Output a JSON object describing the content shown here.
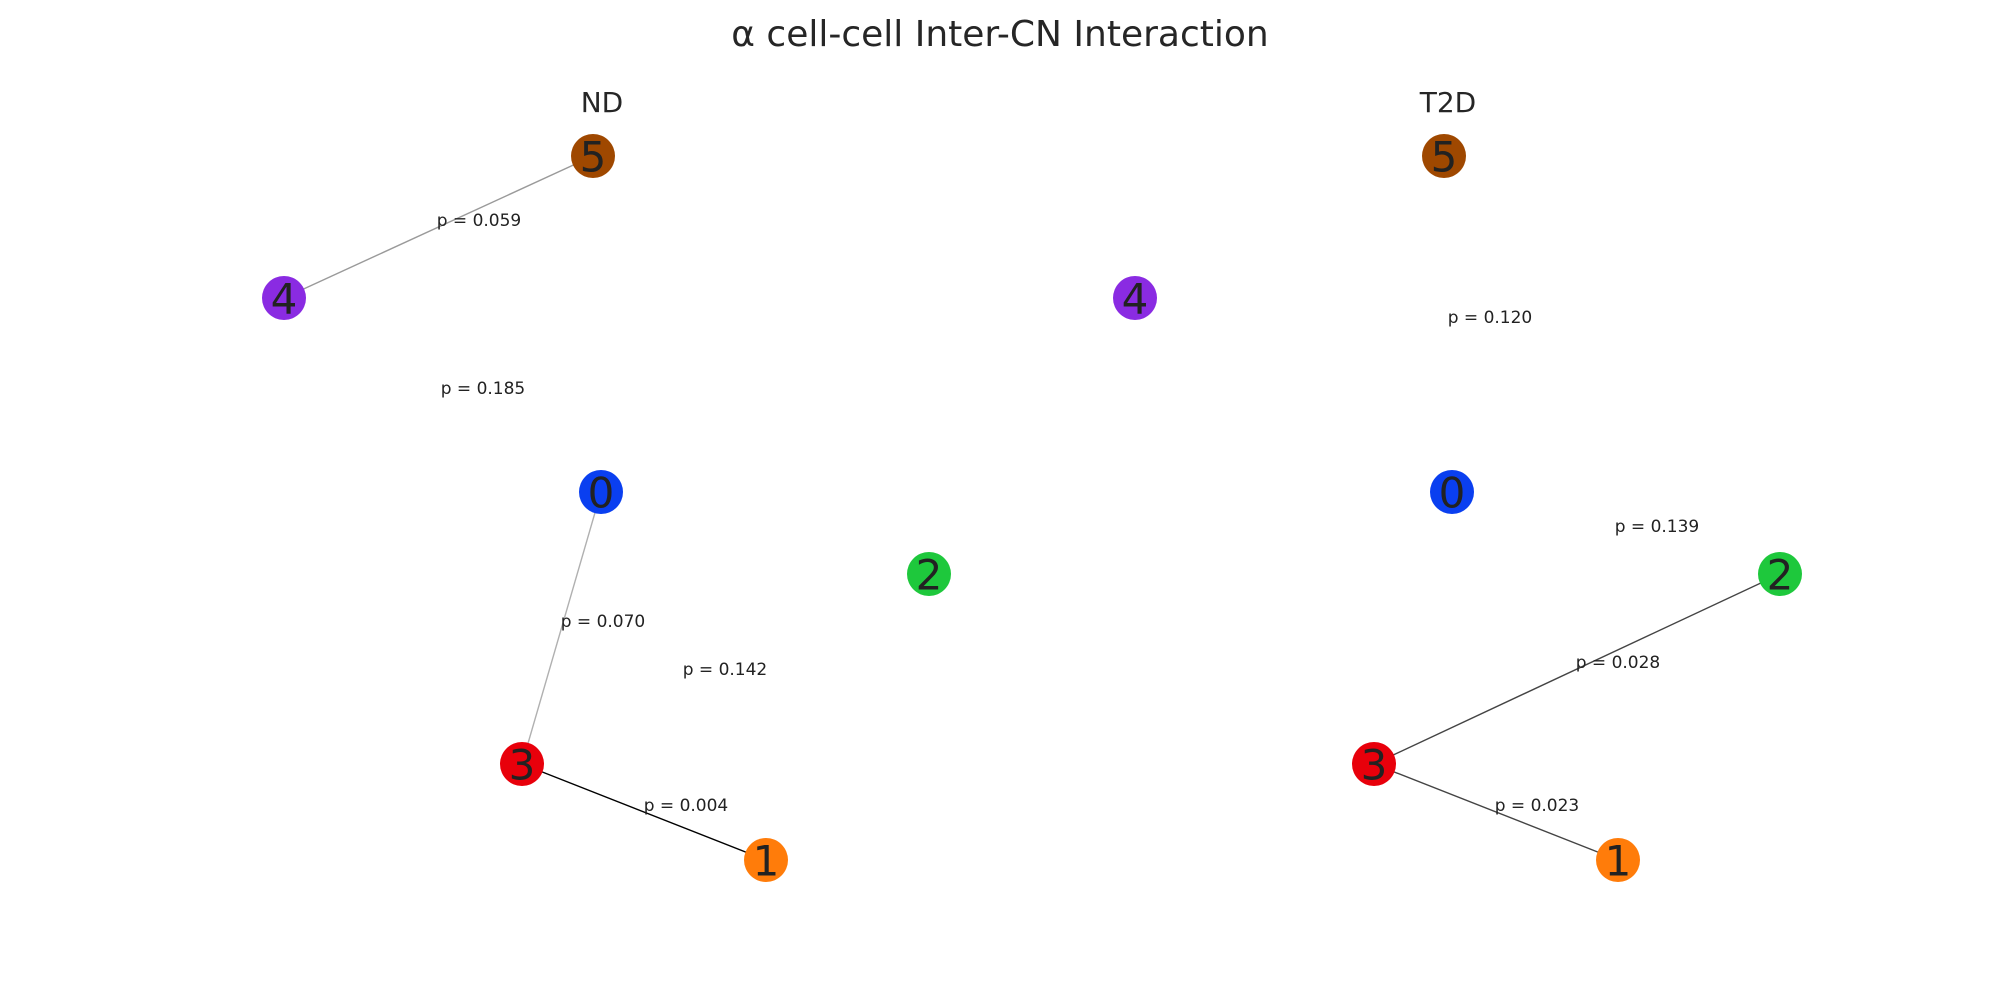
{
  "title": "α cell-cell Inter-CN Interaction",
  "panels": [
    {
      "title": "ND",
      "nodes": [
        {
          "id": "0",
          "color": "#0a3ff0"
        },
        {
          "id": "1",
          "color": "#ff7c0a"
        },
        {
          "id": "2",
          "color": "#1ec83c"
        },
        {
          "id": "3",
          "color": "#e8000b"
        },
        {
          "id": "4",
          "color": "#8a2be2"
        },
        {
          "id": "5",
          "color": "#9f4800"
        }
      ],
      "edges": [
        {
          "source": "5",
          "target": "4",
          "label": "p = 0.059",
          "color": "#9a9a9a",
          "drawn": true
        },
        {
          "source": "0",
          "target": "3",
          "label": "p = 0.070",
          "color": "#b0b0b0",
          "drawn": true
        },
        {
          "source": "3",
          "target": "1",
          "label": "p = 0.004",
          "color": "#000000",
          "drawn": true
        },
        {
          "source": "4",
          "target": "0",
          "label": "p = 0.185",
          "color": "#ffffff",
          "drawn": false
        },
        {
          "source": "3",
          "target": "2",
          "label": "p = 0.142",
          "color": "#ffffff",
          "drawn": false
        }
      ]
    },
    {
      "title": "T2D",
      "nodes": [
        {
          "id": "0",
          "color": "#0a3ff0"
        },
        {
          "id": "1",
          "color": "#ff7c0a"
        },
        {
          "id": "2",
          "color": "#1ec83c"
        },
        {
          "id": "3",
          "color": "#e8000b"
        },
        {
          "id": "4",
          "color": "#8a2be2"
        },
        {
          "id": "5",
          "color": "#9f4800"
        }
      ],
      "edges": [
        {
          "source": "3",
          "target": "2",
          "label": "p = 0.028",
          "color": "#444444",
          "drawn": true
        },
        {
          "source": "3",
          "target": "1",
          "label": "p = 0.023",
          "color": "#444444",
          "drawn": true
        },
        {
          "source": "5",
          "target": "0",
          "label": "p = 0.120",
          "color": "#ffffff",
          "drawn": false
        },
        {
          "source": "0",
          "target": "2",
          "label": "p = 0.139",
          "color": "#ffffff",
          "drawn": false
        }
      ]
    }
  ]
}
